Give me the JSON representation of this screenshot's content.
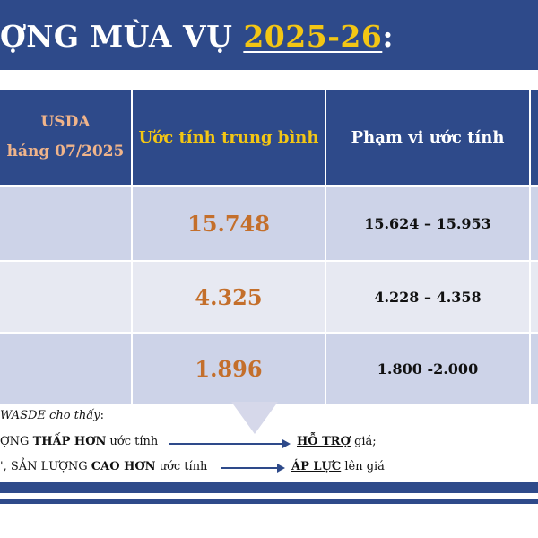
{
  "title": {
    "prefix": "ỢNG MÙA VỤ ",
    "year": "2025-26",
    "suffix": ":"
  },
  "table": {
    "headers": {
      "usda_line1": "USDA",
      "usda_line2": "háng 07/2025",
      "average": "Ước tính trung bình",
      "range": "Phạm vi ước tính"
    },
    "rows": [
      {
        "average": "15.748",
        "range": "15.624 – 15.953"
      },
      {
        "average": "4.325",
        "range": "4.228 – 4.358"
      },
      {
        "average": "1.896",
        "range": "1.800 -2.000"
      }
    ]
  },
  "notes": {
    "intro": "WASDE cho thấy",
    "intro_colon": ":",
    "line1": {
      "pre": "ỢNG ",
      "bold": "THẤP HƠN",
      "post": " ước tính",
      "result_bold": "HỖ TRỢ",
      "result_post": " giá;"
    },
    "line2": {
      "pre": "', SẢN LƯỢNG ",
      "bold": "CAO HƠN",
      "post": " ước tính",
      "result_bold": "ÁP LỰC",
      "result_post": " lên giá"
    }
  },
  "colors": {
    "navy": "#2e4a8a",
    "gold": "#f3c614",
    "orange": "#c46f2b",
    "row_dark": "#cdd3e8",
    "row_light": "#e7e9f2"
  }
}
